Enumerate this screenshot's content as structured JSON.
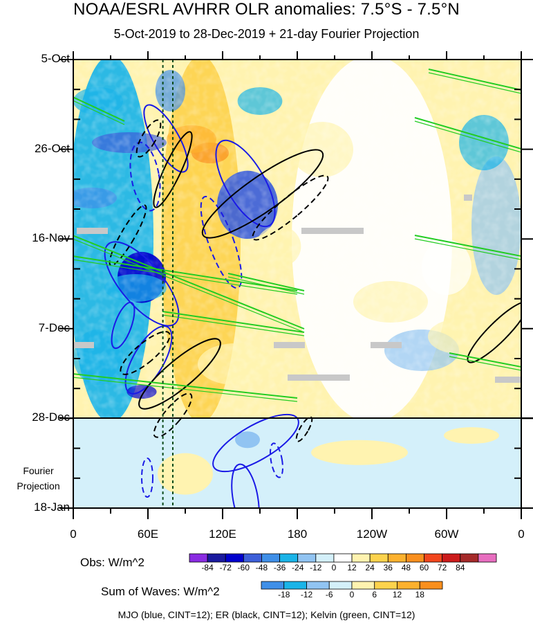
{
  "title": "NOAA/ESRL AVHRR OLR anomalies: 7.5°S - 7.5°N",
  "subtitle": "5-Oct-2019 to 28-Dec-2019 + 21-day Fourier Projection",
  "fourier_label_line1": "Fourier",
  "fourier_label_line2": "Projection",
  "footer": "MJO (blue, CINT=12); ER (black, CINT=12); Kelvin (green, CINT=12)",
  "chart_data": {
    "type": "heatmap",
    "description_axes": "Hovmoller: longitude vs time",
    "x_ticks": [
      "0",
      "60E",
      "120E",
      "180",
      "120W",
      "60W",
      "0"
    ],
    "x_range_deg_east": [
      0,
      360
    ],
    "y_ticks": [
      "5-Oct",
      "26-Oct",
      "16-Nov",
      "7-Dec",
      "28-Dec",
      "18-Jan"
    ],
    "y_range": [
      "5-Oct-2019",
      "18-Jan-2020"
    ],
    "observation_end": "28-Dec",
    "reference_lines_deg_east": [
      72,
      80
    ],
    "obs_colorbar": {
      "label": "Obs: W/m^2",
      "levels": [
        "-84",
        "-72",
        "-60",
        "-48",
        "-36",
        "-24",
        "-12",
        "0",
        "12",
        "24",
        "36",
        "48",
        "60",
        "72",
        "84"
      ],
      "colors": [
        "#8a2be2",
        "#1a1a9e",
        "#0000cd",
        "#3d5fd9",
        "#3f8fe8",
        "#1ab4e8",
        "#91c4f2",
        "#d4f0fa",
        "#ffffff",
        "#fff3b0",
        "#fdd34d",
        "#fdb12e",
        "#fa8f1e",
        "#f2461d",
        "#cc1b1b",
        "#a52a2a",
        "#e86ec0"
      ]
    },
    "waves_colorbar": {
      "label": "Sum of Waves: W/m^2",
      "levels": [
        "-18",
        "-12",
        "-6",
        "0",
        "6",
        "12",
        "18"
      ],
      "colors": [
        "#3f8fe8",
        "#1ab4e8",
        "#91c4f2",
        "#d4f0fa",
        "#fff3b0",
        "#fdd34d",
        "#fdb12e",
        "#fa8f1e"
      ]
    },
    "regions": [
      {
        "lon": [
          0,
          60
        ],
        "start": "5-Oct",
        "end": "28-Dec",
        "anomaly": -30
      },
      {
        "lon": [
          75,
          130
        ],
        "start": "5-Oct",
        "end": "28-Dec",
        "anomaly": 30
      },
      {
        "lon": [
          120,
          160
        ],
        "start": "1-Nov",
        "end": "15-Nov",
        "anomaly": -50
      },
      {
        "lon": [
          40,
          70
        ],
        "start": "20-Nov",
        "end": "30-Nov",
        "anomaly": -70
      },
      {
        "lon": [
          180,
          300
        ],
        "start": "5-Oct",
        "end": "28-Dec",
        "anomaly": 12
      }
    ],
    "waves": [
      {
        "type": "MJO",
        "color": "blue"
      },
      {
        "type": "ER",
        "color": "black"
      },
      {
        "type": "Kelvin",
        "color": "green"
      }
    ]
  }
}
